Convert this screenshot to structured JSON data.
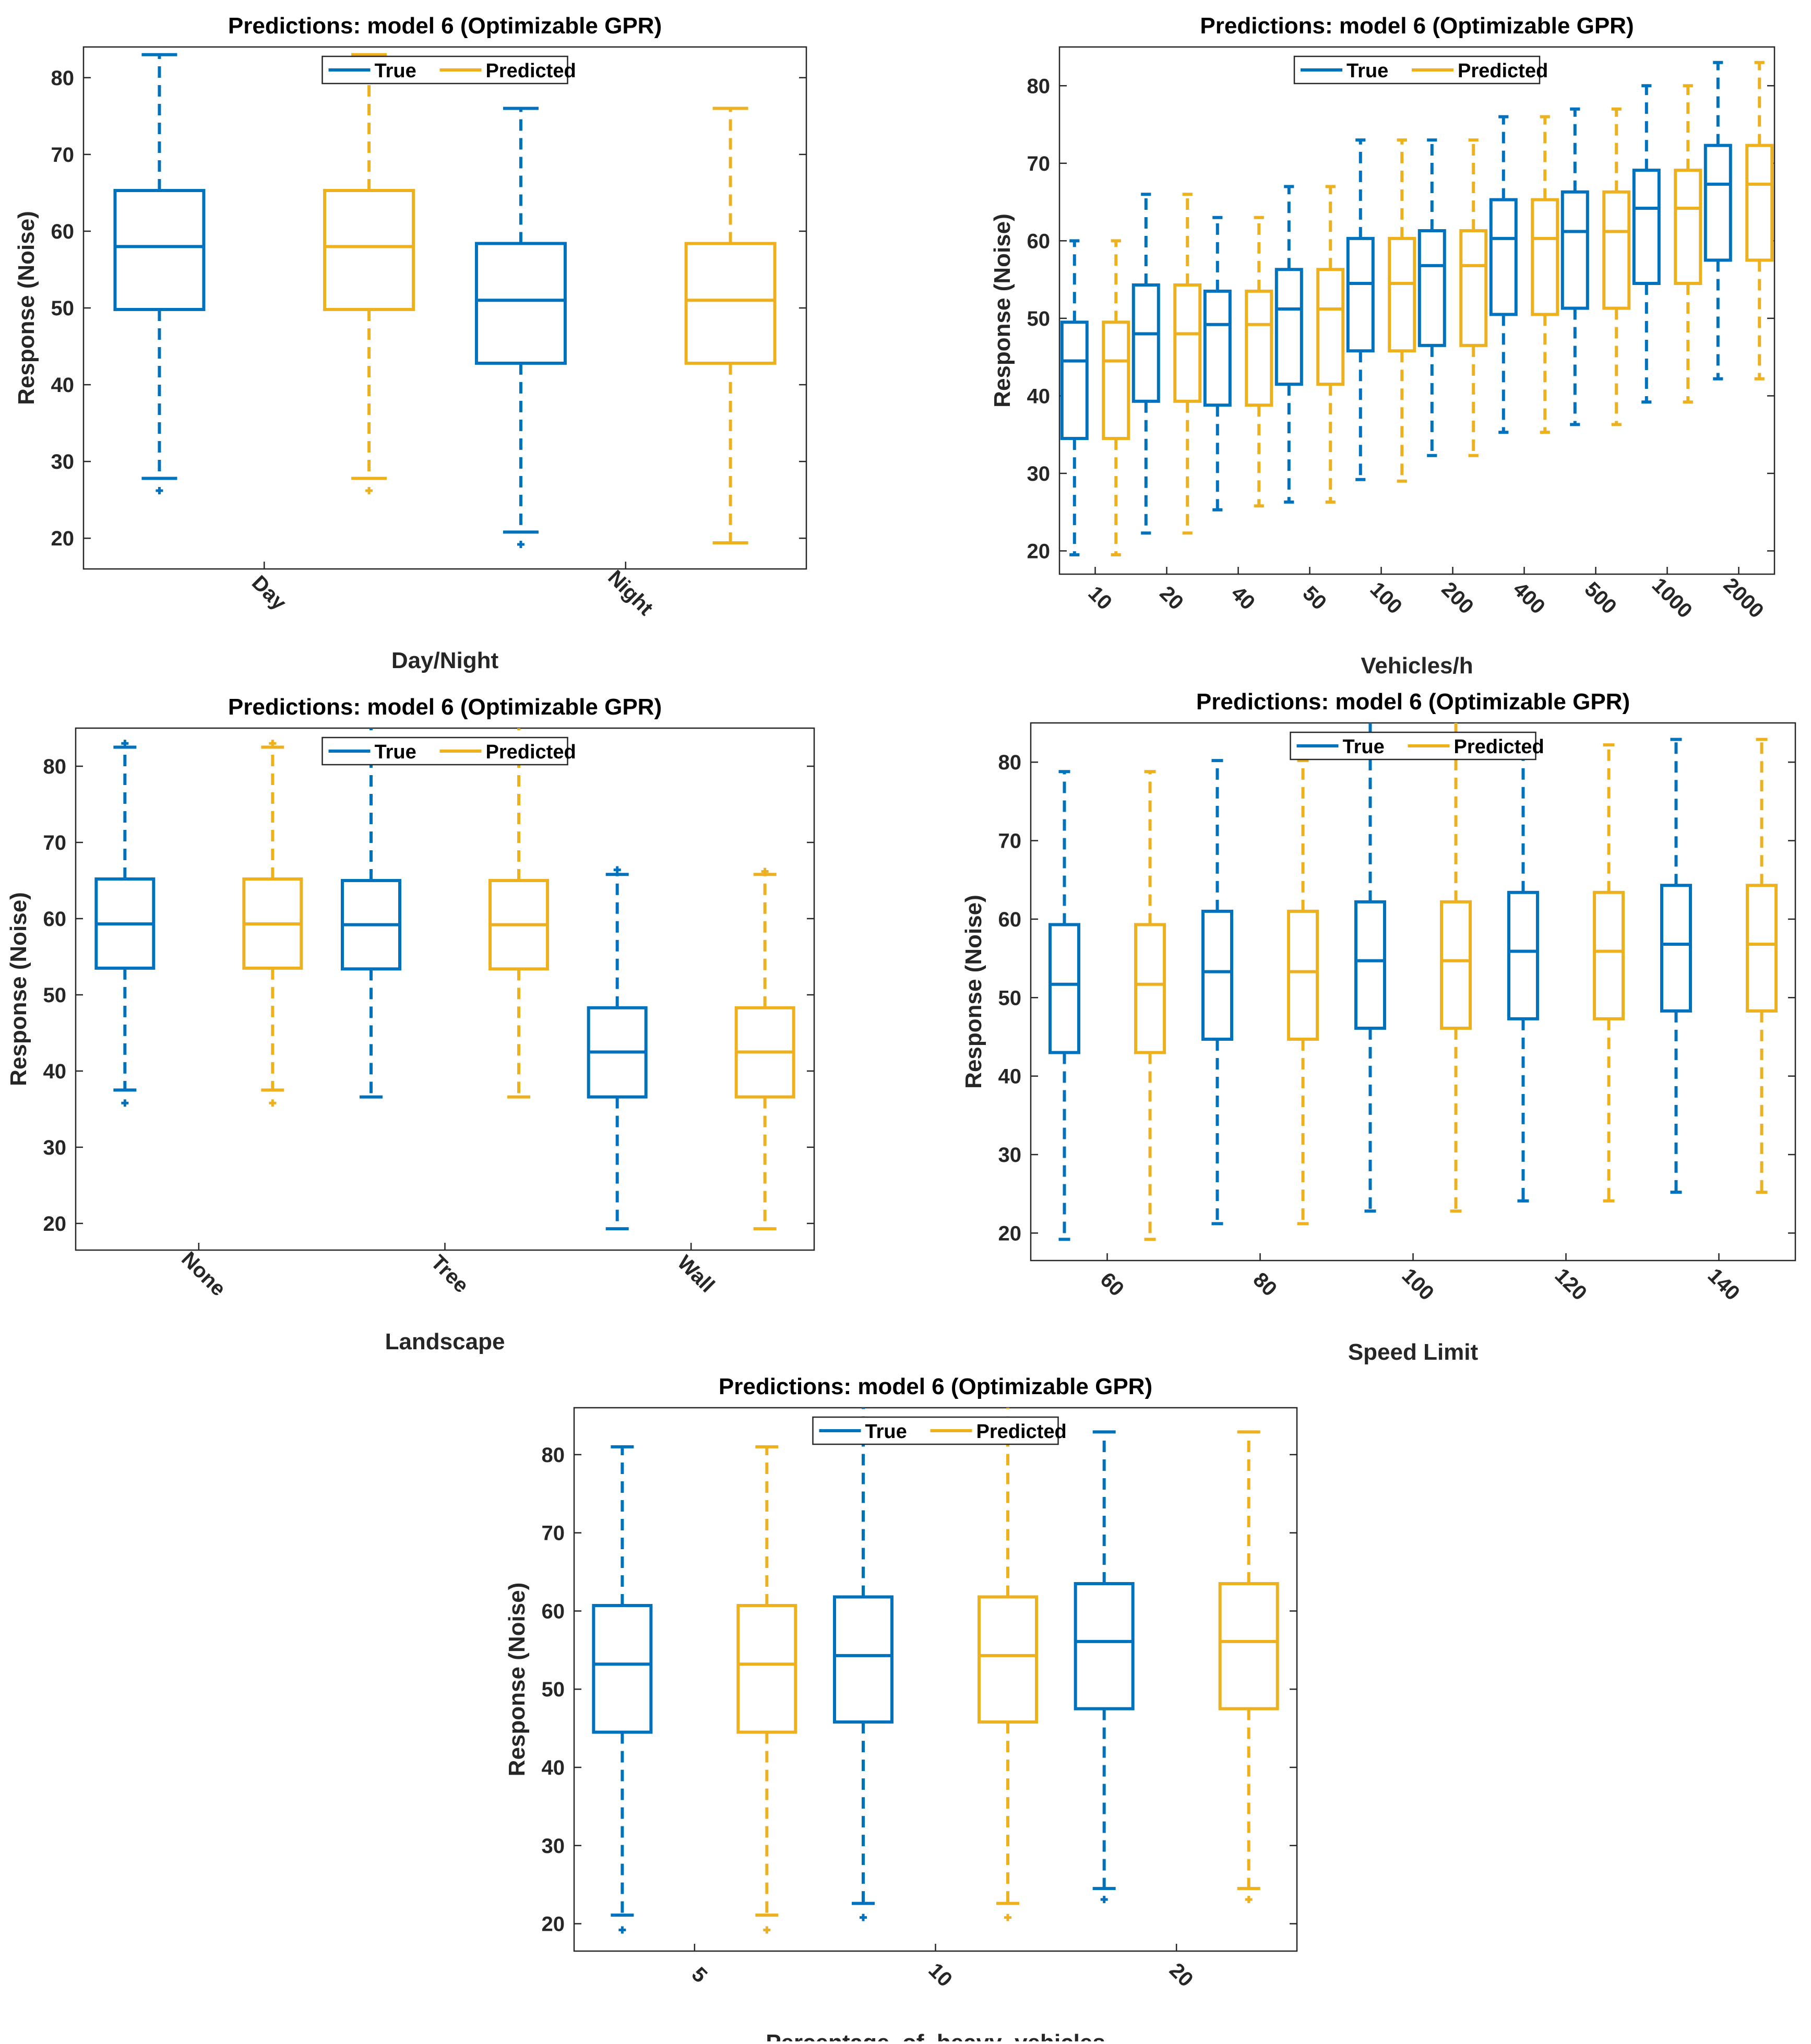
{
  "colors": {
    "true": "#0072BD",
    "predicted": "#EDB120",
    "axis": "#262626",
    "frame": "#262626"
  },
  "chart_data": [
    {
      "type": "boxplot",
      "title": "Predictions: model 6 (Optimizable GPR)",
      "xlabel": "Day/Night",
      "ylabel": "Response (Noise)",
      "ylim": [
        16,
        84
      ],
      "yticks": [
        20,
        30,
        40,
        50,
        60,
        70,
        80
      ],
      "legend": {
        "position": "top-center",
        "entries": [
          "True",
          "Predicted"
        ]
      },
      "categories": [
        "Day",
        "Night"
      ],
      "series": [
        {
          "name": "True",
          "boxes": [
            {
              "whisker_low": 27.8,
              "q1": 49.8,
              "median": 58,
              "q3": 65.3,
              "whisker_high": 83,
              "outliers": [
                26.2
              ]
            },
            {
              "whisker_low": 20.8,
              "q1": 42.8,
              "median": 51,
              "q3": 58.4,
              "whisker_high": 76,
              "outliers": [
                19.2
              ]
            }
          ]
        },
        {
          "name": "Predicted",
          "boxes": [
            {
              "whisker_low": 27.8,
              "q1": 49.8,
              "median": 58,
              "q3": 65.3,
              "whisker_high": 83,
              "outliers": [
                26.2
              ]
            },
            {
              "whisker_low": 19.4,
              "q1": 42.8,
              "median": 51,
              "q3": 58.4,
              "whisker_high": 76,
              "outliers": []
            }
          ]
        }
      ]
    },
    {
      "type": "boxplot",
      "title": "Predictions: model 6 (Optimizable GPR)",
      "xlabel": "Vehicles/h",
      "ylabel": "Response (Noise)",
      "ylim": [
        17,
        85
      ],
      "yticks": [
        20,
        30,
        40,
        50,
        60,
        70,
        80
      ],
      "legend": {
        "position": "top-center",
        "entries": [
          "True",
          "Predicted"
        ]
      },
      "categories": [
        "10",
        "20",
        "40",
        "50",
        "100",
        "200",
        "400",
        "500",
        "1000",
        "2000"
      ],
      "series": [
        {
          "name": "True",
          "boxes": [
            {
              "whisker_low": 19.5,
              "q1": 34.5,
              "median": 44.5,
              "q3": 49.5,
              "whisker_high": 60,
              "outliers": []
            },
            {
              "whisker_low": 22.3,
              "q1": 39.3,
              "median": 48,
              "q3": 54.3,
              "whisker_high": 66,
              "outliers": []
            },
            {
              "whisker_low": 25.3,
              "q1": 38.8,
              "median": 49.2,
              "q3": 53.5,
              "whisker_high": 63,
              "outliers": []
            },
            {
              "whisker_low": 26.3,
              "q1": 41.5,
              "median": 51.2,
              "q3": 56.3,
              "whisker_high": 67,
              "outliers": []
            },
            {
              "whisker_low": 29.2,
              "q1": 45.8,
              "median": 54.5,
              "q3": 60.3,
              "whisker_high": 73,
              "outliers": []
            },
            {
              "whisker_low": 32.3,
              "q1": 46.5,
              "median": 56.8,
              "q3": 61.3,
              "whisker_high": 73,
              "outliers": []
            },
            {
              "whisker_low": 35.3,
              "q1": 50.5,
              "median": 60.3,
              "q3": 65.3,
              "whisker_high": 76,
              "outliers": []
            },
            {
              "whisker_low": 36.3,
              "q1": 51.3,
              "median": 61.2,
              "q3": 66.3,
              "whisker_high": 77,
              "outliers": []
            },
            {
              "whisker_low": 39.2,
              "q1": 54.5,
              "median": 64.2,
              "q3": 69.1,
              "whisker_high": 80,
              "outliers": []
            },
            {
              "whisker_low": 42.2,
              "q1": 57.5,
              "median": 67.3,
              "q3": 72.3,
              "whisker_high": 83,
              "outliers": []
            }
          ]
        },
        {
          "name": "Predicted",
          "boxes": [
            {
              "whisker_low": 19.5,
              "q1": 34.5,
              "median": 44.5,
              "q3": 49.5,
              "whisker_high": 60,
              "outliers": []
            },
            {
              "whisker_low": 22.3,
              "q1": 39.3,
              "median": 48,
              "q3": 54.3,
              "whisker_high": 66,
              "outliers": []
            },
            {
              "whisker_low": 25.8,
              "q1": 38.8,
              "median": 49.2,
              "q3": 53.5,
              "whisker_high": 63,
              "outliers": []
            },
            {
              "whisker_low": 26.3,
              "q1": 41.5,
              "median": 51.2,
              "q3": 56.3,
              "whisker_high": 67,
              "outliers": []
            },
            {
              "whisker_low": 29,
              "q1": 45.8,
              "median": 54.5,
              "q3": 60.3,
              "whisker_high": 73,
              "outliers": []
            },
            {
              "whisker_low": 32.3,
              "q1": 46.5,
              "median": 56.8,
              "q3": 61.3,
              "whisker_high": 73,
              "outliers": []
            },
            {
              "whisker_low": 35.3,
              "q1": 50.5,
              "median": 60.3,
              "q3": 65.3,
              "whisker_high": 76,
              "outliers": []
            },
            {
              "whisker_low": 36.3,
              "q1": 51.3,
              "median": 61.2,
              "q3": 66.3,
              "whisker_high": 77,
              "outliers": []
            },
            {
              "whisker_low": 39.2,
              "q1": 54.5,
              "median": 64.2,
              "q3": 69.1,
              "whisker_high": 80,
              "outliers": []
            },
            {
              "whisker_low": 42.2,
              "q1": 57.5,
              "median": 67.3,
              "q3": 72.3,
              "whisker_high": 83,
              "outliers": []
            }
          ]
        }
      ]
    },
    {
      "type": "boxplot",
      "title": "Predictions: model 6 (Optimizable GPR)",
      "xlabel": "Landscape",
      "ylabel": "Response (Noise)",
      "ylim": [
        16.5,
        85
      ],
      "yticks": [
        20,
        30,
        40,
        50,
        60,
        70,
        80
      ],
      "legend": {
        "position": "top-center",
        "entries": [
          "True",
          "Predicted"
        ]
      },
      "categories": [
        "None",
        "Tree",
        "Wall"
      ],
      "series": [
        {
          "name": "True",
          "boxes": [
            {
              "whisker_low": 37.5,
              "q1": 53.5,
              "median": 59.3,
              "q3": 65.2,
              "whisker_high": 82.5,
              "outliers": [
                35.8,
                83
              ]
            },
            {
              "whisker_low": 36.6,
              "q1": 53.4,
              "median": 59.2,
              "q3": 65,
              "whisker_high": 85,
              "outliers": []
            },
            {
              "whisker_low": 19.3,
              "q1": 36.6,
              "median": 42.5,
              "q3": 48.3,
              "whisker_high": 65.8,
              "outliers": [
                66.4
              ]
            }
          ]
        },
        {
          "name": "Predicted",
          "boxes": [
            {
              "whisker_low": 37.5,
              "q1": 53.5,
              "median": 59.3,
              "q3": 65.2,
              "whisker_high": 82.5,
              "outliers": [
                35.8,
                83
              ]
            },
            {
              "whisker_low": 36.6,
              "q1": 53.4,
              "median": 59.2,
              "q3": 65,
              "whisker_high": 85,
              "outliers": []
            },
            {
              "whisker_low": 19.3,
              "q1": 36.6,
              "median": 42.5,
              "q3": 48.3,
              "whisker_high": 65.8,
              "outliers": [
                66.2
              ]
            }
          ]
        }
      ]
    },
    {
      "type": "boxplot",
      "title": "Predictions: model 6 (Optimizable GPR)",
      "xlabel": "Speed Limit",
      "ylabel": "Response (Noise)",
      "ylim": [
        16.5,
        85
      ],
      "yticks": [
        20,
        30,
        40,
        50,
        60,
        70,
        80
      ],
      "legend": {
        "position": "top-center",
        "entries": [
          "True",
          "Predicted"
        ]
      },
      "categories": [
        "60",
        "80",
        "100",
        "120",
        "140"
      ],
      "series": [
        {
          "name": "True",
          "boxes": [
            {
              "whisker_low": 19.2,
              "q1": 43,
              "median": 51.7,
              "q3": 59.3,
              "whisker_high": 78.8,
              "outliers": []
            },
            {
              "whisker_low": 21.2,
              "q1": 44.7,
              "median": 53.3,
              "q3": 61,
              "whisker_high": 80.2,
              "outliers": []
            },
            {
              "whisker_low": 22.8,
              "q1": 46.1,
              "median": 54.7,
              "q3": 62.2,
              "whisker_high": 85,
              "outliers": []
            },
            {
              "whisker_low": 24.1,
              "q1": 47.3,
              "median": 55.9,
              "q3": 63.4,
              "whisker_high": 82.2,
              "outliers": []
            },
            {
              "whisker_low": 25.2,
              "q1": 48.3,
              "median": 56.8,
              "q3": 64.3,
              "whisker_high": 82.9,
              "outliers": []
            }
          ]
        },
        {
          "name": "Predicted",
          "boxes": [
            {
              "whisker_low": 19.2,
              "q1": 43,
              "median": 51.7,
              "q3": 59.3,
              "whisker_high": 78.8,
              "outliers": []
            },
            {
              "whisker_low": 21.2,
              "q1": 44.7,
              "median": 53.3,
              "q3": 61,
              "whisker_high": 80.2,
              "outliers": []
            },
            {
              "whisker_low": 22.8,
              "q1": 46.1,
              "median": 54.7,
              "q3": 62.2,
              "whisker_high": 85,
              "outliers": []
            },
            {
              "whisker_low": 24.1,
              "q1": 47.3,
              "median": 55.9,
              "q3": 63.4,
              "whisker_high": 82.2,
              "outliers": []
            },
            {
              "whisker_low": 25.2,
              "q1": 48.3,
              "median": 56.8,
              "q3": 64.3,
              "whisker_high": 82.9,
              "outliers": []
            }
          ]
        }
      ]
    },
    {
      "type": "boxplot",
      "title": "Predictions: model 6 (Optimizable GPR)",
      "xlabel": "Percentage_of_heavy_vehicles",
      "ylabel": "Response (Noise)",
      "ylim": [
        16.5,
        86
      ],
      "yticks": [
        20,
        30,
        40,
        50,
        60,
        70,
        80
      ],
      "legend": {
        "position": "top-center",
        "entries": [
          "True",
          "Predicted"
        ]
      },
      "categories": [
        "5",
        "10",
        "20"
      ],
      "series": [
        {
          "name": "True",
          "boxes": [
            {
              "whisker_low": 21.1,
              "q1": 44.5,
              "median": 53.2,
              "q3": 60.7,
              "whisker_high": 81,
              "outliers": [
                19.2
              ]
            },
            {
              "whisker_low": 22.6,
              "q1": 45.8,
              "median": 54.3,
              "q3": 61.8,
              "whisker_high": 86,
              "outliers": [
                20.8
              ]
            },
            {
              "whisker_low": 24.5,
              "q1": 47.5,
              "median": 56.1,
              "q3": 63.5,
              "whisker_high": 82.9,
              "outliers": [
                23.1
              ]
            }
          ]
        },
        {
          "name": "Predicted",
          "boxes": [
            {
              "whisker_low": 21.1,
              "q1": 44.5,
              "median": 53.2,
              "q3": 60.7,
              "whisker_high": 81,
              "outliers": [
                19.2
              ]
            },
            {
              "whisker_low": 22.6,
              "q1": 45.8,
              "median": 54.3,
              "q3": 61.8,
              "whisker_high": 86,
              "outliers": [
                20.8
              ]
            },
            {
              "whisker_low": 24.5,
              "q1": 47.5,
              "median": 56.1,
              "q3": 63.5,
              "whisker_high": 82.9,
              "outliers": [
                23.1
              ]
            }
          ]
        }
      ]
    }
  ]
}
